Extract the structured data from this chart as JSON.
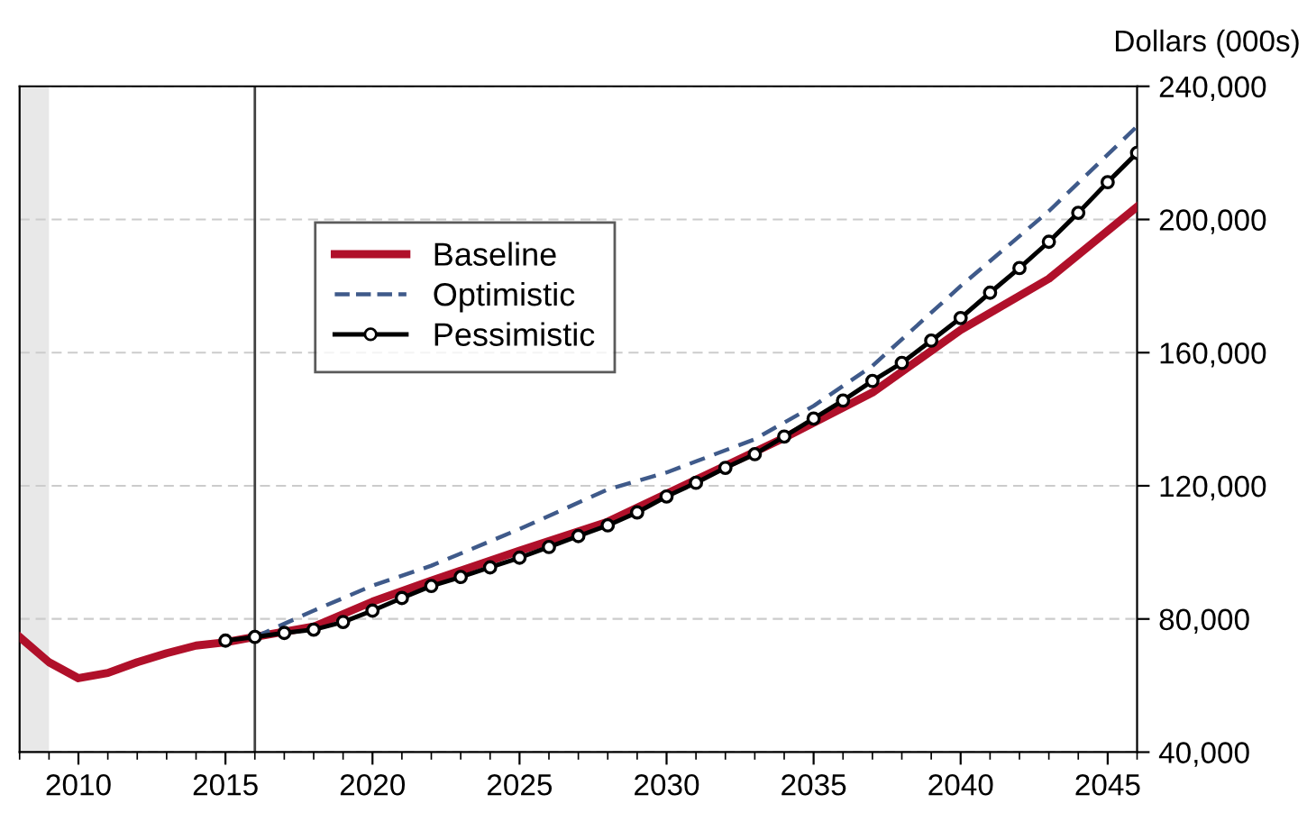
{
  "chart_data": {
    "type": "line",
    "ylabel": "Dollars (000s)",
    "xlim": [
      2008,
      2046
    ],
    "xticks": [
      2010,
      2015,
      2020,
      2025,
      2030,
      2035,
      2040,
      2045
    ],
    "ylim": [
      40000,
      240000
    ],
    "yticks": [
      {
        "value": 40000,
        "label": "40,000"
      },
      {
        "value": 80000,
        "label": "80,000"
      },
      {
        "value": 120000,
        "label": "120,000"
      },
      {
        "value": 160000,
        "label": "160,000"
      },
      {
        "value": 200000,
        "label": "200,000"
      },
      {
        "value": 240000,
        "label": "240,000"
      }
    ],
    "grid": "y",
    "legend": "top left",
    "bands": [
      {
        "axis": "x",
        "from": 2008,
        "to": 2009,
        "color": "#e8e8e8"
      }
    ],
    "ref_lines": [
      {
        "axis": "x",
        "value": 2016,
        "color": "#404040",
        "line_style": "solid"
      }
    ],
    "series": [
      {
        "name": "Baseline",
        "color": "#b0102a",
        "line_style": "solid",
        "marker": "none",
        "x": [
          2008,
          2009,
          2010,
          2011,
          2012,
          2013,
          2014,
          2015,
          2016,
          2018,
          2020,
          2022,
          2025,
          2028,
          2031,
          2034,
          2037,
          2040,
          2043,
          2046
        ],
        "values": [
          74600,
          67000,
          62200,
          63800,
          67000,
          69700,
          72000,
          73000,
          74600,
          77700,
          85200,
          91500,
          100500,
          109200,
          121800,
          134400,
          148000,
          166800,
          182200,
          203800
        ]
      },
      {
        "name": "Optimistic",
        "color": "#3f5a8a",
        "line_style": "dashed",
        "marker": "none",
        "x": [
          2016,
          2018,
          2020,
          2022,
          2025,
          2028,
          2030,
          2033,
          2035,
          2037,
          2040,
          2043,
          2046
        ],
        "values": [
          74600,
          82500,
          90000,
          96000,
          107000,
          118900,
          124000,
          134000,
          144000,
          156000,
          180000,
          202500,
          228000
        ]
      },
      {
        "name": "Pessimistic",
        "color": "#000000",
        "line_style": "solid",
        "marker": "circle",
        "x": [
          2015,
          2016,
          2017,
          2018,
          2019,
          2020,
          2021,
          2022,
          2023,
          2024,
          2025,
          2026,
          2027,
          2028,
          2029,
          2030,
          2031,
          2032,
          2033,
          2034,
          2035,
          2036,
          2037,
          2038,
          2039,
          2040,
          2041,
          2042,
          2043,
          2044,
          2045,
          2046
        ],
        "values": [
          73500,
          74600,
          75800,
          76800,
          79100,
          82500,
          86300,
          89900,
          92600,
          95500,
          98400,
          101600,
          104900,
          108100,
          112000,
          116800,
          120900,
          125400,
          129500,
          134800,
          140200,
          145600,
          151500,
          156900,
          163600,
          170400,
          178000,
          185400,
          193300,
          202000,
          211200,
          220000
        ]
      }
    ]
  }
}
